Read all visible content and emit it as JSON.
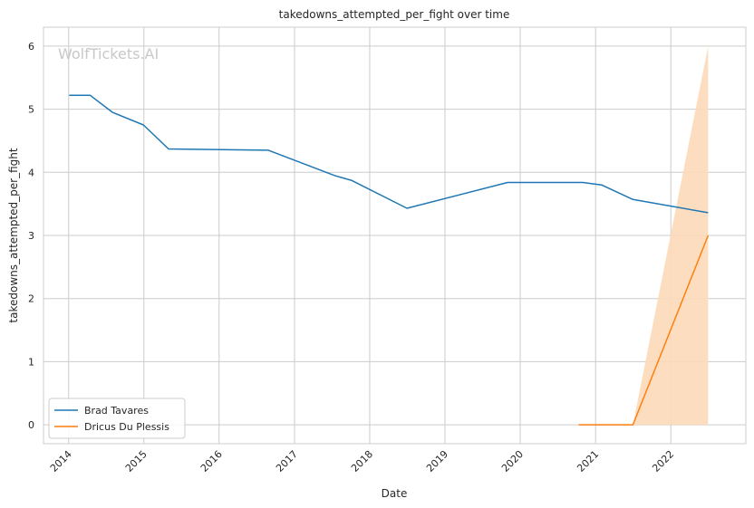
{
  "chart_data": {
    "type": "line",
    "title": "takedowns_attempted_per_fight over time",
    "xlabel": "Date",
    "ylabel": "takedowns_attempted_per_fight",
    "watermark": "WolfTickets.AI",
    "x_ticks": [
      "2014",
      "2015",
      "2016",
      "2017",
      "2018",
      "2019",
      "2020",
      "2021",
      "2022"
    ],
    "y_ticks": [
      "0",
      "1",
      "2",
      "3",
      "4",
      "5",
      "6"
    ],
    "xlim": [
      "2013-09-01",
      "2022-12-31"
    ],
    "ylim": [
      -0.3,
      6.3
    ],
    "grid": true,
    "legend": "lower-left",
    "series": [
      {
        "name": "Brad Tavares",
        "color": "#1f77b4",
        "points": [
          [
            "2014-01-04",
            5.22
          ],
          [
            "2014-04-16",
            5.22
          ],
          [
            "2014-08-02",
            4.95
          ],
          [
            "2014-12-30",
            4.75
          ],
          [
            "2015-05-01",
            4.37
          ],
          [
            "2016-08-27",
            4.35
          ],
          [
            "2017-07-14",
            3.95
          ],
          [
            "2017-10-07",
            3.87
          ],
          [
            "2018-07-01",
            3.43
          ],
          [
            "2019-11-01",
            3.84
          ],
          [
            "2020-10-31",
            3.84
          ],
          [
            "2021-01-30",
            3.8
          ],
          [
            "2021-07-01",
            3.57
          ],
          [
            "2022-07-01",
            3.36
          ]
        ]
      },
      {
        "name": "Dricus Du Plessis",
        "color": "#ff7f0e",
        "band_color": "#fdd9b8",
        "points": [
          [
            "2020-10-11",
            0.0
          ],
          [
            "2021-07-01",
            0.0
          ],
          [
            "2022-07-01",
            3.0
          ]
        ],
        "band": [
          [
            "2020-10-11",
            0.0,
            0.0
          ],
          [
            "2021-07-01",
            0.0,
            0.0
          ],
          [
            "2022-07-01",
            0.0,
            6.0
          ]
        ]
      }
    ]
  }
}
